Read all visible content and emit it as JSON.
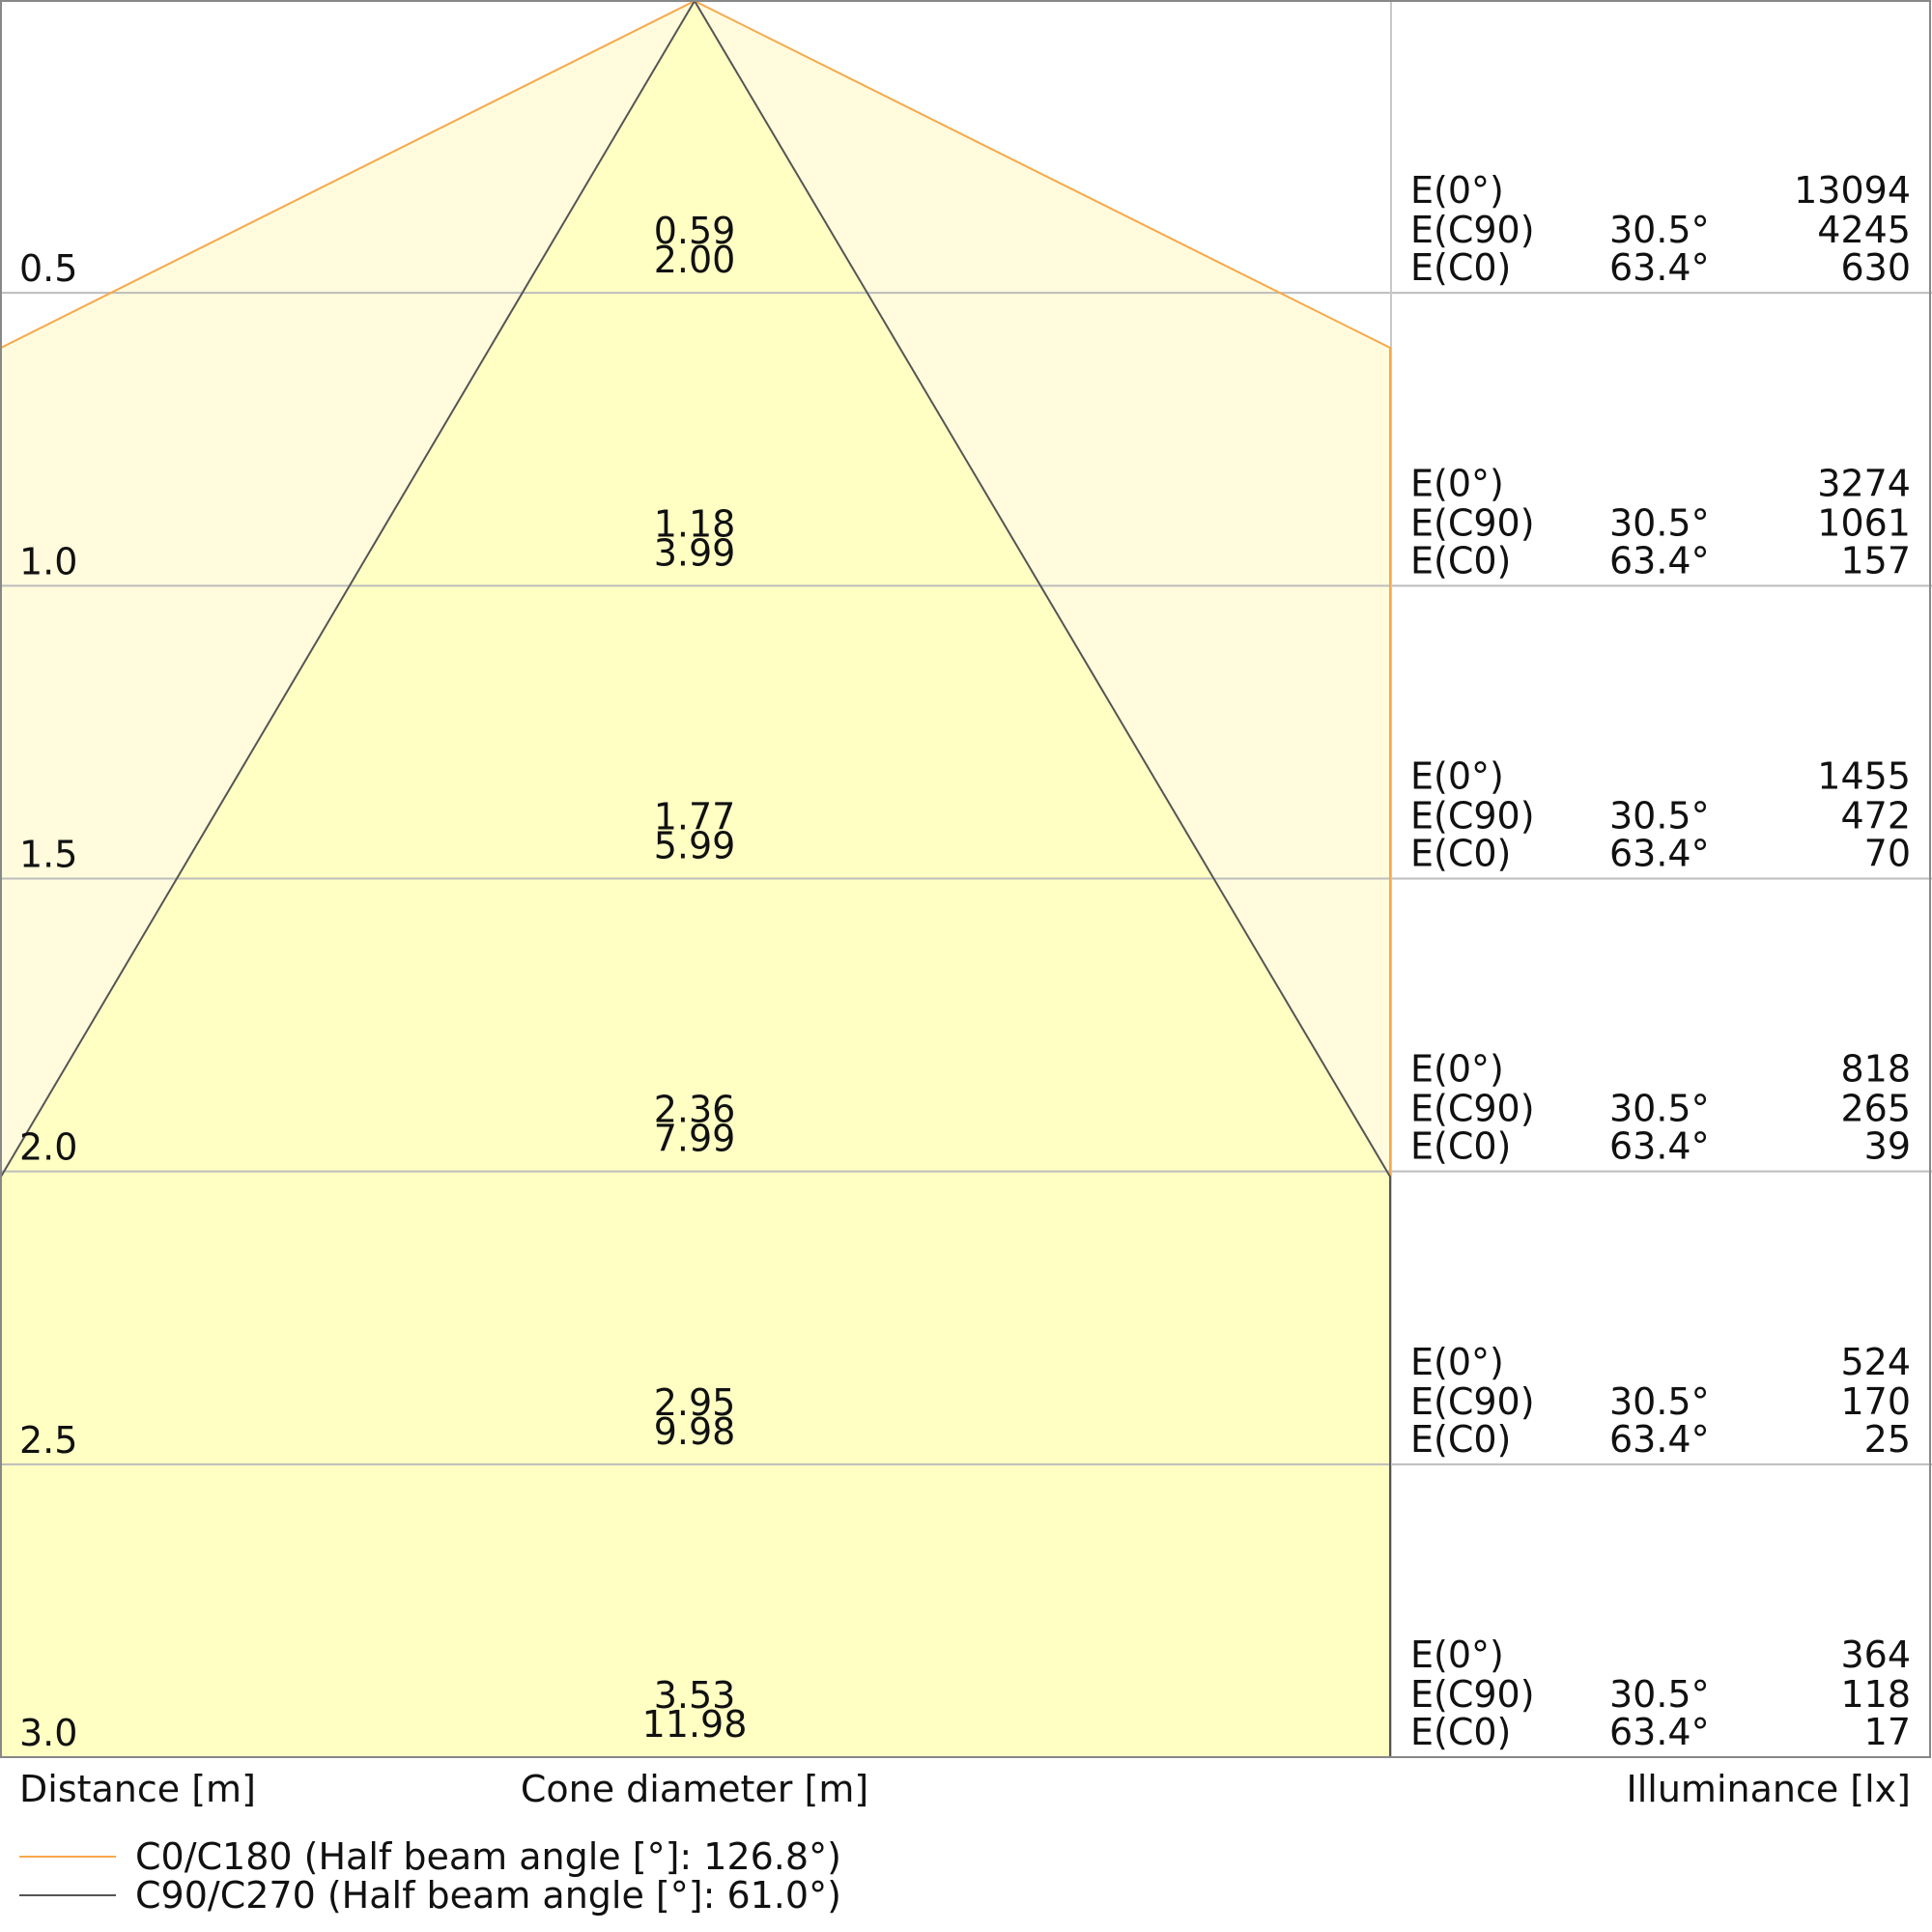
{
  "rows": [
    {
      "distance": "0.5",
      "diameter_c90": "0.59",
      "diameter_c0": "2.00",
      "e0": {
        "label": "E(0°)",
        "value": "13094"
      },
      "ec90": {
        "label": "E(C90)",
        "angle": "30.5°",
        "value": "4245"
      },
      "ec0": {
        "label": "E(C0)",
        "angle": "63.4°",
        "value": "630"
      }
    },
    {
      "distance": "1.0",
      "diameter_c90": "1.18",
      "diameter_c0": "3.99",
      "e0": {
        "label": "E(0°)",
        "value": "3274"
      },
      "ec90": {
        "label": "E(C90)",
        "angle": "30.5°",
        "value": "1061"
      },
      "ec0": {
        "label": "E(C0)",
        "angle": "63.4°",
        "value": "157"
      }
    },
    {
      "distance": "1.5",
      "diameter_c90": "1.77",
      "diameter_c0": "5.99",
      "e0": {
        "label": "E(0°)",
        "value": "1455"
      },
      "ec90": {
        "label": "E(C90)",
        "angle": "30.5°",
        "value": "472"
      },
      "ec0": {
        "label": "E(C0)",
        "angle": "63.4°",
        "value": "70"
      }
    },
    {
      "distance": "2.0",
      "diameter_c90": "2.36",
      "diameter_c0": "7.99",
      "e0": {
        "label": "E(0°)",
        "value": "818"
      },
      "ec90": {
        "label": "E(C90)",
        "angle": "30.5°",
        "value": "265"
      },
      "ec0": {
        "label": "E(C0)",
        "angle": "63.4°",
        "value": "39"
      }
    },
    {
      "distance": "2.5",
      "diameter_c90": "2.95",
      "diameter_c0": "9.98",
      "e0": {
        "label": "E(0°)",
        "value": "524"
      },
      "ec90": {
        "label": "E(C90)",
        "angle": "30.5°",
        "value": "170"
      },
      "ec0": {
        "label": "E(C0)",
        "angle": "63.4°",
        "value": "25"
      }
    },
    {
      "distance": "3.0",
      "diameter_c90": "3.53",
      "diameter_c0": "11.98",
      "e0": {
        "label": "E(0°)",
        "value": "364"
      },
      "ec90": {
        "label": "E(C90)",
        "angle": "30.5°",
        "value": "118"
      },
      "ec0": {
        "label": "E(C0)",
        "angle": "63.4°",
        "value": "17"
      }
    }
  ],
  "axis_labels": {
    "distance": "Distance [m]",
    "cone_diameter": "Cone diameter [m]",
    "illuminance": "Illuminance [lx]"
  },
  "legend": [
    {
      "name": "C0/C180 (Half beam angle [°]: 126.8°)",
      "color": "#f7a84a"
    },
    {
      "name": "C90/C270 (Half beam angle [°]: 61.0°)",
      "color": "#555555"
    }
  ]
}
